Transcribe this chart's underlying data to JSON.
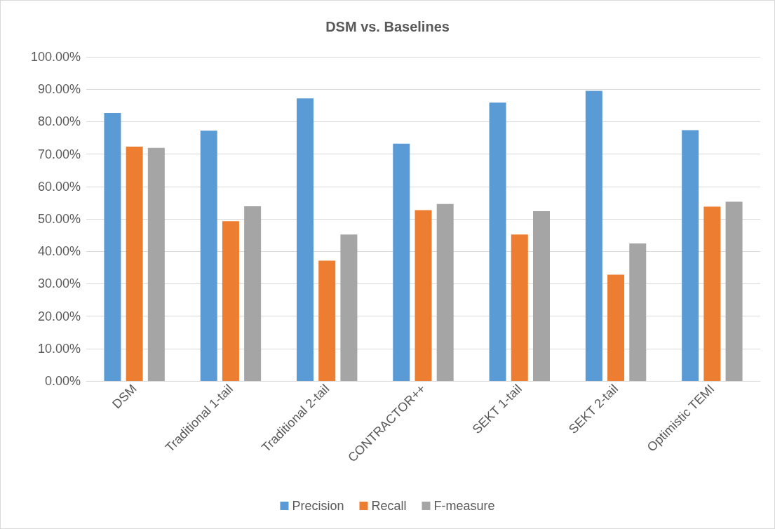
{
  "chart_data": {
    "type": "bar",
    "title": "DSM vs. Baselines",
    "categories": [
      "DSM",
      "Traditional 1-tail",
      "Traditional 2-tail",
      "CONTRACTOR++",
      "SEKT 1-tail",
      "SEKT 2-tail",
      "Optimistic TEMI"
    ],
    "series": [
      {
        "name": "Precision",
        "color": "#5b9bd5",
        "values": [
          82.7,
          77.2,
          87.2,
          73.2,
          85.9,
          89.5,
          77.4
        ]
      },
      {
        "name": "Recall",
        "color": "#ed7d31",
        "values": [
          72.3,
          49.3,
          37.1,
          52.7,
          45.2,
          32.8,
          53.8
        ]
      },
      {
        "name": "F-measure",
        "color": "#a5a5a5",
        "values": [
          71.9,
          53.9,
          45.2,
          54.6,
          52.4,
          42.4,
          55.3
        ]
      }
    ],
    "ylim": [
      0,
      100
    ],
    "yticks": [
      {
        "value": 0,
        "label": "0.00%"
      },
      {
        "value": 10,
        "label": "10.00%"
      },
      {
        "value": 20,
        "label": "20.00%"
      },
      {
        "value": 30,
        "label": "30.00%"
      },
      {
        "value": 40,
        "label": "40.00%"
      },
      {
        "value": 50,
        "label": "50.00%"
      },
      {
        "value": 60,
        "label": "60.00%"
      },
      {
        "value": 70,
        "label": "70.00%"
      },
      {
        "value": 80,
        "label": "80.00%"
      },
      {
        "value": 90,
        "label": "90.00%"
      },
      {
        "value": 100,
        "label": "100.00%"
      }
    ],
    "grid": "y",
    "legend": "bottom"
  }
}
